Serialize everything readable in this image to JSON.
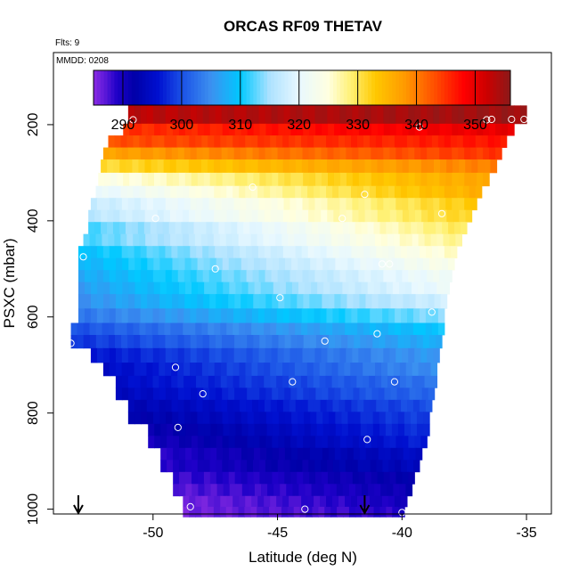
{
  "chart_data": {
    "type": "heatmap",
    "title": "ORCAS RF09 THETAV",
    "flights_note": "Flts: 9",
    "date_note": "MMDD: 0208",
    "xlabel": "Latitude (deg N)",
    "ylabel": "PSXC (mbar)",
    "xlim": [
      -54,
      -34
    ],
    "ylim": [
      1010,
      50
    ],
    "y_reversed": true,
    "xticks": [
      -50,
      -45,
      -40,
      -35
    ],
    "yticks": [
      200,
      400,
      600,
      800,
      1000
    ],
    "colorbar": {
      "range": [
        285,
        356
      ],
      "ticks": [
        290,
        300,
        310,
        320,
        330,
        340,
        350
      ],
      "dividers": [
        290,
        300,
        310,
        320,
        330,
        340,
        350
      ],
      "palette": [
        {
          "v": 285,
          "c": "#8a2be2"
        },
        {
          "v": 287,
          "c": "#5a18d8"
        },
        {
          "v": 289,
          "c": "#1e00c8"
        },
        {
          "v": 292,
          "c": "#0000a8"
        },
        {
          "v": 296,
          "c": "#0010d0"
        },
        {
          "v": 300,
          "c": "#1a50e6"
        },
        {
          "v": 305,
          "c": "#3c90f0"
        },
        {
          "v": 310,
          "c": "#00c8ff"
        },
        {
          "v": 315,
          "c": "#aee2ff"
        },
        {
          "v": 320,
          "c": "#e8f8ff"
        },
        {
          "v": 325,
          "c": "#ffffe0"
        },
        {
          "v": 329,
          "c": "#fff070"
        },
        {
          "v": 333,
          "c": "#ffc800"
        },
        {
          "v": 338,
          "c": "#ff9a00"
        },
        {
          "v": 343,
          "c": "#ff5000"
        },
        {
          "v": 348,
          "c": "#ff0000"
        },
        {
          "v": 352,
          "c": "#cc0000"
        },
        {
          "v": 356,
          "c": "#8b1a1a"
        }
      ]
    },
    "layers": [
      {
        "p": 186,
        "lat_min": -51.0,
        "lat_max": -35.0,
        "theta_start": 353,
        "theta_end": 355
      },
      {
        "p": 210,
        "lat_min": -51.2,
        "lat_max": -35.5,
        "theta_start": 345,
        "theta_end": 350
      },
      {
        "p": 235,
        "lat_min": -51.8,
        "lat_max": -35.8,
        "theta_start": 343,
        "theta_end": 347
      },
      {
        "p": 260,
        "lat_min": -52.0,
        "lat_max": -36.0,
        "theta_start": 337,
        "theta_end": 345
      },
      {
        "p": 285,
        "lat_min": -52.1,
        "lat_max": -36.2,
        "theta_start": 331,
        "theta_end": 340
      },
      {
        "p": 315,
        "lat_min": -52.2,
        "lat_max": -36.5,
        "theta_start": 324,
        "theta_end": 337
      },
      {
        "p": 340,
        "lat_min": -52.3,
        "lat_max": -36.8,
        "theta_start": 320,
        "theta_end": 336
      },
      {
        "p": 365,
        "lat_min": -52.5,
        "lat_max": -37.0,
        "theta_start": 317,
        "theta_end": 333
      },
      {
        "p": 390,
        "lat_min": -52.6,
        "lat_max": -37.2,
        "theta_start": 316,
        "theta_end": 332
      },
      {
        "p": 415,
        "lat_min": -52.6,
        "lat_max": -37.4,
        "theta_start": 312,
        "theta_end": 330
      },
      {
        "p": 440,
        "lat_min": -52.8,
        "lat_max": -37.6,
        "theta_start": 312,
        "theta_end": 328
      },
      {
        "p": 465,
        "lat_min": -53.0,
        "lat_max": -37.8,
        "theta_start": 309,
        "theta_end": 326
      },
      {
        "p": 490,
        "lat_min": -53.0,
        "lat_max": -37.9,
        "theta_start": 308,
        "theta_end": 324
      },
      {
        "p": 515,
        "lat_min": -53.0,
        "lat_max": -38.0,
        "theta_start": 307,
        "theta_end": 322
      },
      {
        "p": 540,
        "lat_min": -53.0,
        "lat_max": -38.1,
        "theta_start": 306,
        "theta_end": 321
      },
      {
        "p": 565,
        "lat_min": -53.0,
        "lat_max": -38.2,
        "theta_start": 305,
        "theta_end": 318
      },
      {
        "p": 600,
        "lat_min": -53.0,
        "lat_max": -38.3,
        "theta_start": 303,
        "theta_end": 314
      },
      {
        "p": 625,
        "lat_min": -53.3,
        "lat_max": -38.3,
        "theta_start": 300,
        "theta_end": 310
      },
      {
        "p": 650,
        "lat_min": -53.3,
        "lat_max": -38.4,
        "theta_start": 298,
        "theta_end": 308
      },
      {
        "p": 680,
        "lat_min": -52.5,
        "lat_max": -38.5,
        "theta_start": 296,
        "theta_end": 306
      },
      {
        "p": 710,
        "lat_min": -52.0,
        "lat_max": -38.6,
        "theta_start": 295,
        "theta_end": 305
      },
      {
        "p": 735,
        "lat_min": -51.5,
        "lat_max": -38.6,
        "theta_start": 295,
        "theta_end": 303
      },
      {
        "p": 760,
        "lat_min": -51.5,
        "lat_max": -38.7,
        "theta_start": 294,
        "theta_end": 302
      },
      {
        "p": 785,
        "lat_min": -51.0,
        "lat_max": -38.8,
        "theta_start": 293,
        "theta_end": 300
      },
      {
        "p": 810,
        "lat_min": -51.0,
        "lat_max": -38.9,
        "theta_start": 292,
        "theta_end": 299
      },
      {
        "p": 835,
        "lat_min": -50.2,
        "lat_max": -38.9,
        "theta_start": 291,
        "theta_end": 298
      },
      {
        "p": 860,
        "lat_min": -50.2,
        "lat_max": -39.0,
        "theta_start": 290,
        "theta_end": 297
      },
      {
        "p": 885,
        "lat_min": -49.7,
        "lat_max": -39.2,
        "theta_start": 289,
        "theta_end": 295
      },
      {
        "p": 910,
        "lat_min": -49.7,
        "lat_max": -39.3,
        "theta_start": 289,
        "theta_end": 294
      },
      {
        "p": 935,
        "lat_min": -49.2,
        "lat_max": -39.5,
        "theta_start": 288,
        "theta_end": 292
      },
      {
        "p": 960,
        "lat_min": -49.2,
        "lat_max": -39.6,
        "theta_start": 287,
        "theta_end": 291
      },
      {
        "p": 985,
        "lat_min": -48.8,
        "lat_max": -39.8,
        "theta_start": 286,
        "theta_end": 290
      },
      {
        "p": 1005,
        "lat_min": -48.8,
        "lat_max": -39.9,
        "theta_start": 286,
        "theta_end": 289
      }
    ],
    "observations": [
      {
        "lat": -50.8,
        "p": 190
      },
      {
        "lat": -39.3,
        "p": 205
      },
      {
        "lat": -36.6,
        "p": 190
      },
      {
        "lat": -36.4,
        "p": 189
      },
      {
        "lat": -35.6,
        "p": 189
      },
      {
        "lat": -35.1,
        "p": 189
      },
      {
        "lat": -52.5,
        "p": 320
      },
      {
        "lat": -46.0,
        "p": 330
      },
      {
        "lat": -41.5,
        "p": 345
      },
      {
        "lat": -38.4,
        "p": 385
      },
      {
        "lat": -49.9,
        "p": 395
      },
      {
        "lat": -42.4,
        "p": 395
      },
      {
        "lat": -52.8,
        "p": 475
      },
      {
        "lat": -47.5,
        "p": 500
      },
      {
        "lat": -40.8,
        "p": 490
      },
      {
        "lat": -40.5,
        "p": 490
      },
      {
        "lat": -44.9,
        "p": 560
      },
      {
        "lat": -38.8,
        "p": 590
      },
      {
        "lat": -43.1,
        "p": 650
      },
      {
        "lat": -41.0,
        "p": 635
      },
      {
        "lat": -53.3,
        "p": 655
      },
      {
        "lat": -49.1,
        "p": 705
      },
      {
        "lat": -44.4,
        "p": 735
      },
      {
        "lat": -40.3,
        "p": 735
      },
      {
        "lat": -48.0,
        "p": 760
      },
      {
        "lat": -49.0,
        "p": 830
      },
      {
        "lat": -41.4,
        "p": 855
      },
      {
        "lat": -48.5,
        "p": 995
      },
      {
        "lat": -43.9,
        "p": 1000
      },
      {
        "lat": -40.0,
        "p": 1007
      }
    ],
    "arrows": [
      {
        "lat": -53.0
      },
      {
        "lat": -41.5
      }
    ]
  },
  "colors": {
    "axis": "#000000",
    "background": "#ffffff",
    "marker": "#ffffff"
  }
}
